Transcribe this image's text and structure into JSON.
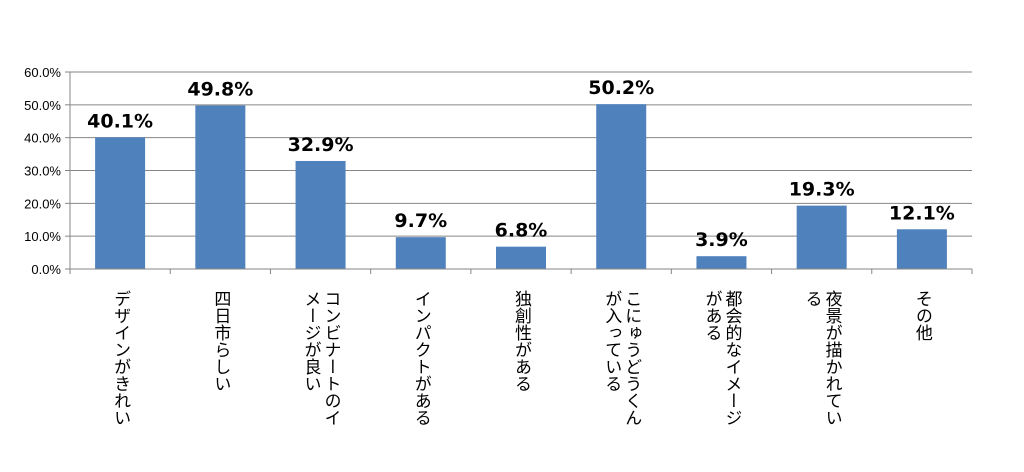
{
  "chart_data": {
    "type": "bar",
    "categories": [
      "デザインがきれい",
      "四日市らしい",
      "コンビナートのイメージが良い",
      "インパクトがある",
      "独創性がある",
      "こにゅうどうくんが入っている",
      "都会的なイメージがある",
      "夜景が描かれている",
      "その他"
    ],
    "category_lines": [
      [
        "デザインがきれい"
      ],
      [
        "四日市らしい"
      ],
      [
        "コンビナートのイ",
        "メージが良い"
      ],
      [
        "インパクトがある"
      ],
      [
        "独創性がある"
      ],
      [
        "こにゅうどうくん",
        "が入っている"
      ],
      [
        "都会的なイメージ",
        "がある"
      ],
      [
        "夜景が描かれてい",
        "る"
      ],
      [
        "その他"
      ]
    ],
    "values": [
      40.1,
      49.8,
      32.9,
      9.7,
      6.8,
      50.2,
      3.9,
      19.3,
      12.1
    ],
    "data_labels": [
      "40.1%",
      "49.8%",
      "32.9%",
      "9.7%",
      "6.8%",
      "50.2%",
      "3.9%",
      "19.3%",
      "12.1%"
    ],
    "y_ticks": [
      "0.0%",
      "10.0%",
      "20.0%",
      "30.0%",
      "40.0%",
      "50.0%",
      "60.0%"
    ],
    "ylim": [
      0,
      60
    ],
    "grid": true,
    "bar_color": "#4F81BD",
    "grid_color": "#868686"
  }
}
